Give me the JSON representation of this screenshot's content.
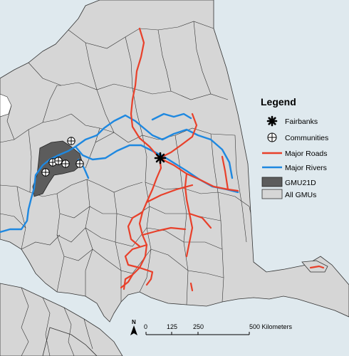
{
  "colors": {
    "water": "#dfe9ee",
    "land": "#d6d6d6",
    "gmu_boundary": "#333333",
    "gmu21d": "#5c5c5c",
    "roads": "#e8402a",
    "rivers": "#1e88e0",
    "white_area": "#ffffff"
  },
  "legend": {
    "title": "Legend",
    "items": [
      {
        "label": "Fairbanks",
        "icon": "asterisk-icon"
      },
      {
        "label": "Communities",
        "icon": "circle-plus-icon"
      },
      {
        "label": "Major Roads",
        "icon": "red-line-icon"
      },
      {
        "label": "Major Rivers",
        "icon": "blue-line-icon"
      },
      {
        "label": "GMU21D",
        "icon": "dark-box-icon"
      },
      {
        "label": "All GMUs",
        "icon": "light-box-icon"
      }
    ]
  },
  "scale_bar": {
    "ticks": [
      "0",
      "125",
      "250",
      "500 Kilometers"
    ]
  },
  "north_arrow": {
    "label": "N"
  }
}
